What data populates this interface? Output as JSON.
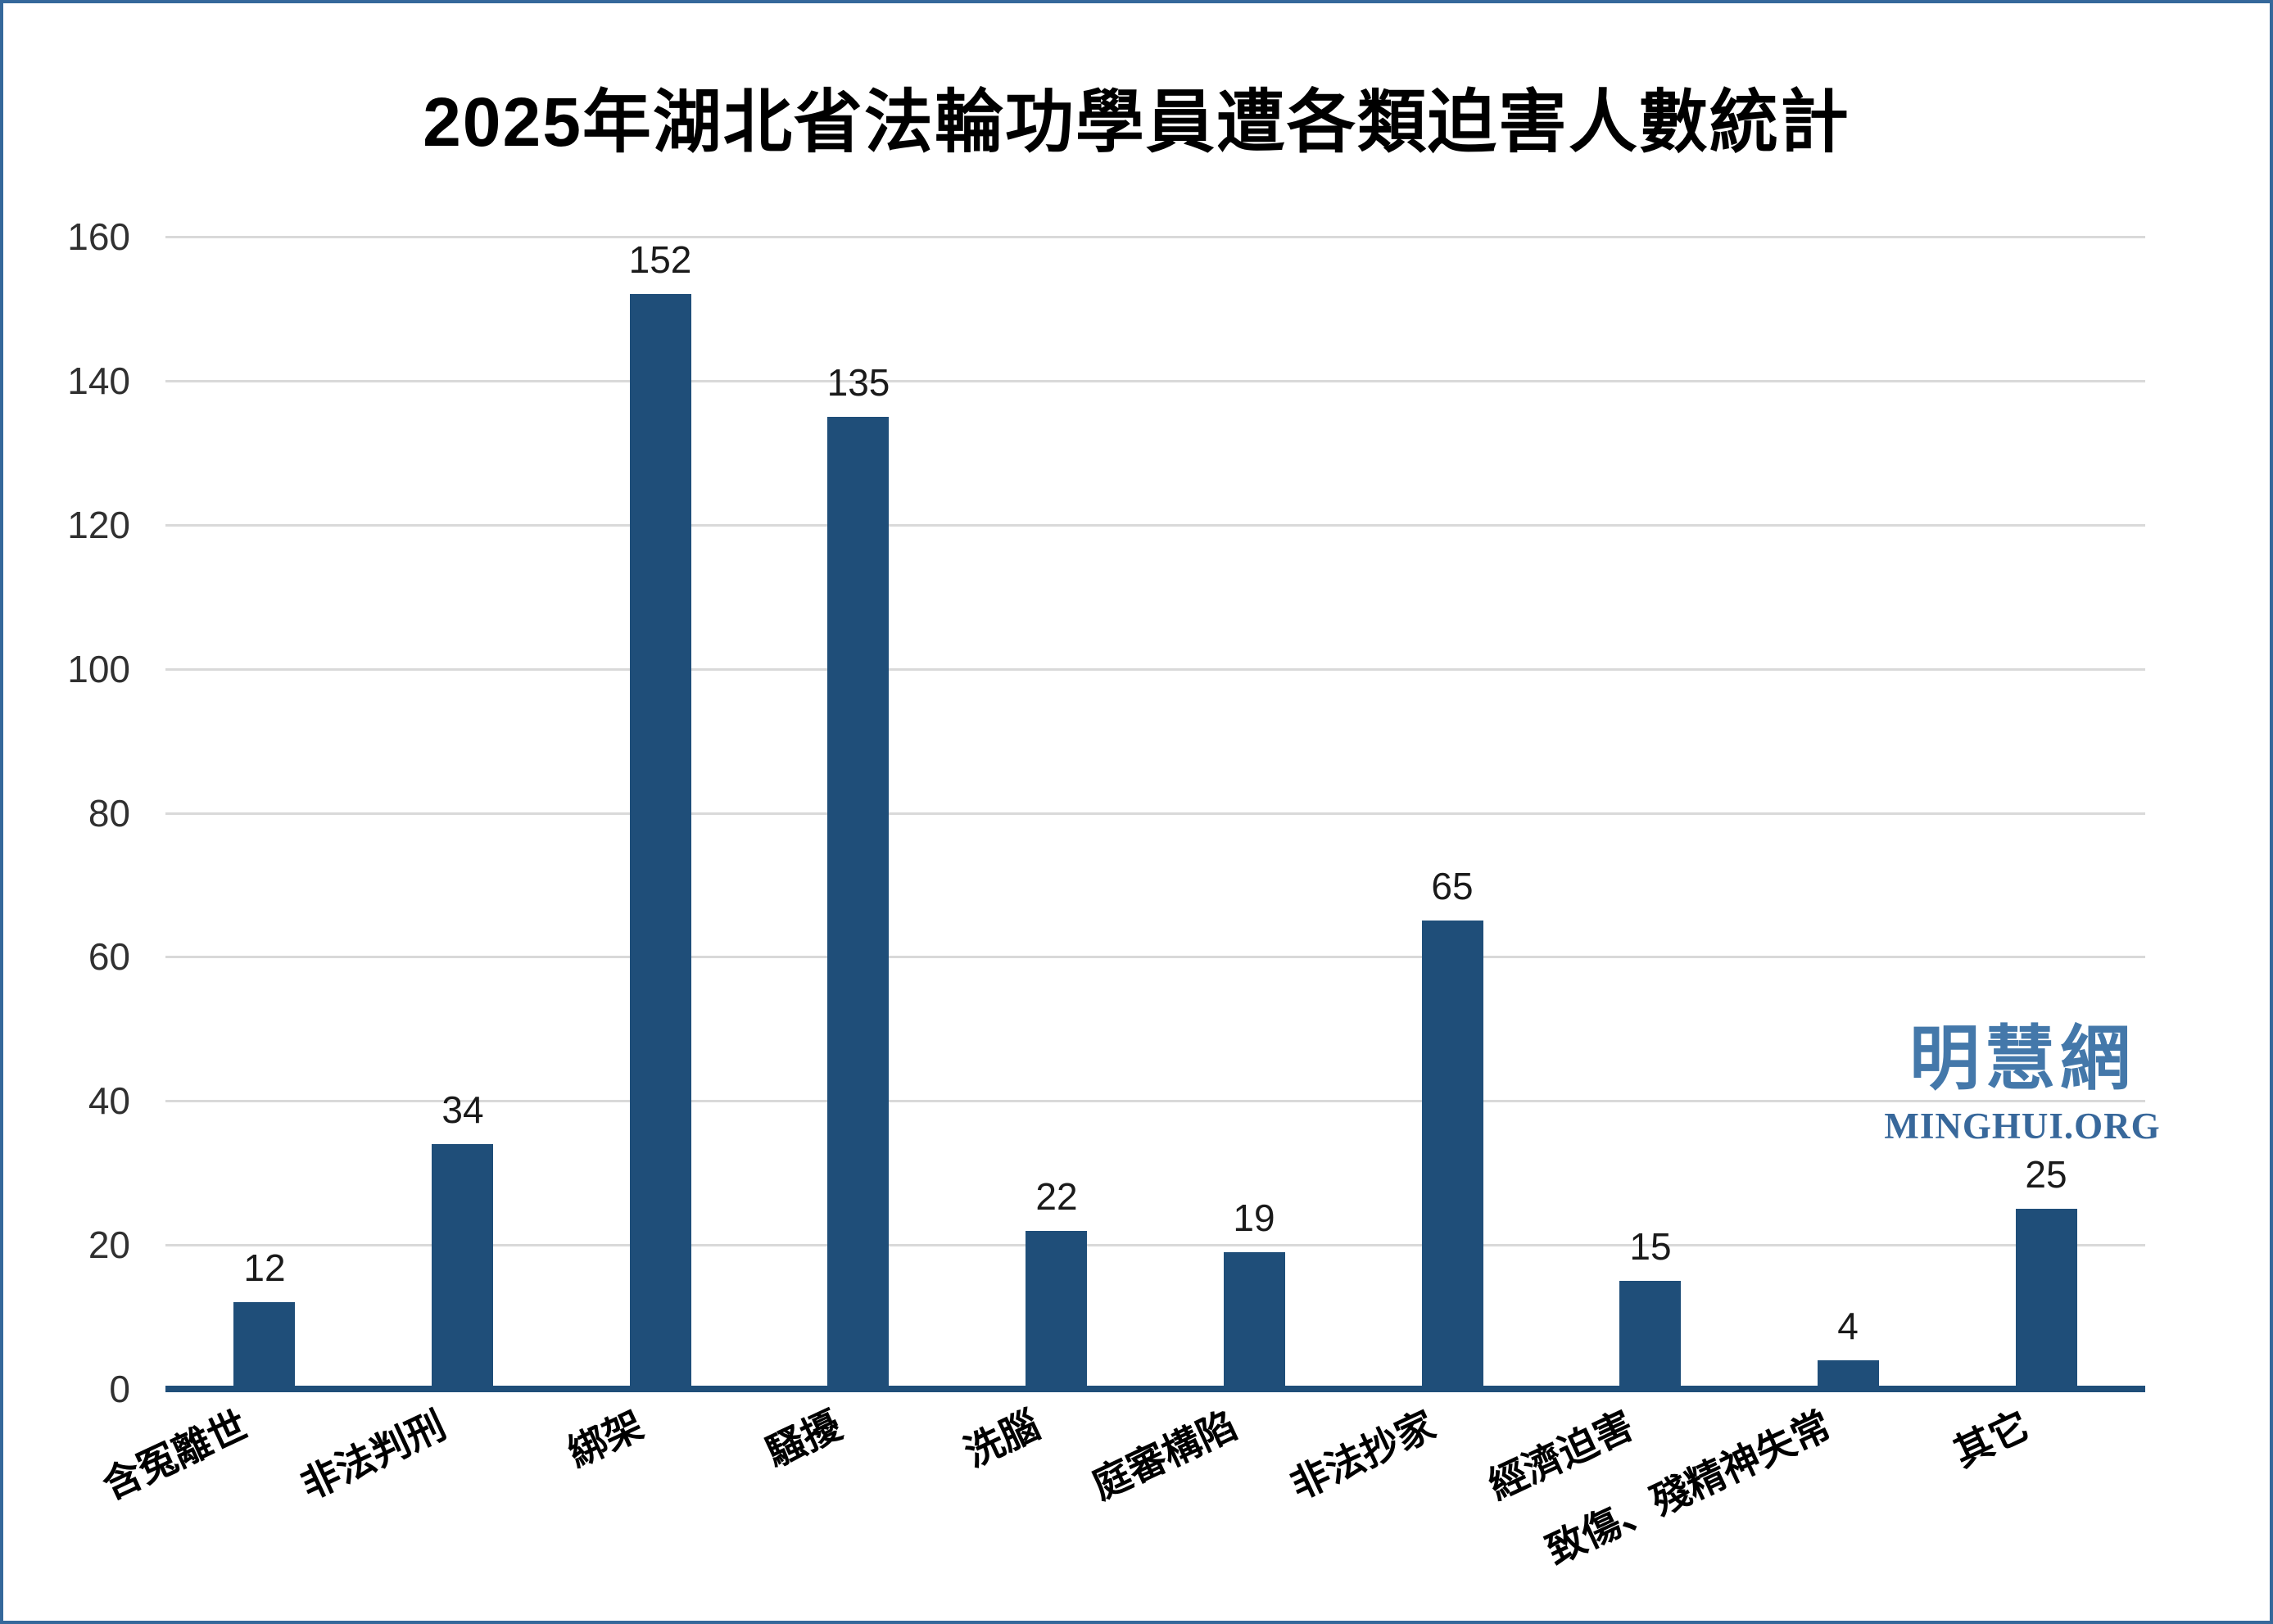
{
  "chart_data": {
    "type": "bar",
    "title": "2025年湖北省法輪功學員遭各類迫害人數統計",
    "categories": [
      "含冤離世",
      "非法判刑",
      "綁架",
      "騷擾",
      "洗腦",
      "庭審構陷",
      "非法抄家",
      "經濟迫害",
      "致傷、殘精神失常",
      "其它"
    ],
    "values": [
      12,
      34,
      152,
      135,
      22,
      19,
      65,
      15,
      4,
      25
    ],
    "xlabel": "",
    "ylabel": "",
    "ylim": [
      0,
      160
    ],
    "yticks": [
      0,
      20,
      40,
      60,
      80,
      100,
      120,
      140,
      160
    ],
    "grid": "horizontal",
    "legend_position": "none",
    "x_label_rotation_deg": -25
  },
  "watermark": {
    "cjk": "明慧網",
    "latin": "MINGHUI.ORG"
  },
  "colors": {
    "bar": "#1F4E79",
    "axis_line": "#1F4E79",
    "gridline": "#D9D9D9",
    "frame_border": "#35689B",
    "watermark_cjk": "#4478AA",
    "watermark_latin": "#38689B",
    "text": "#000000"
  }
}
